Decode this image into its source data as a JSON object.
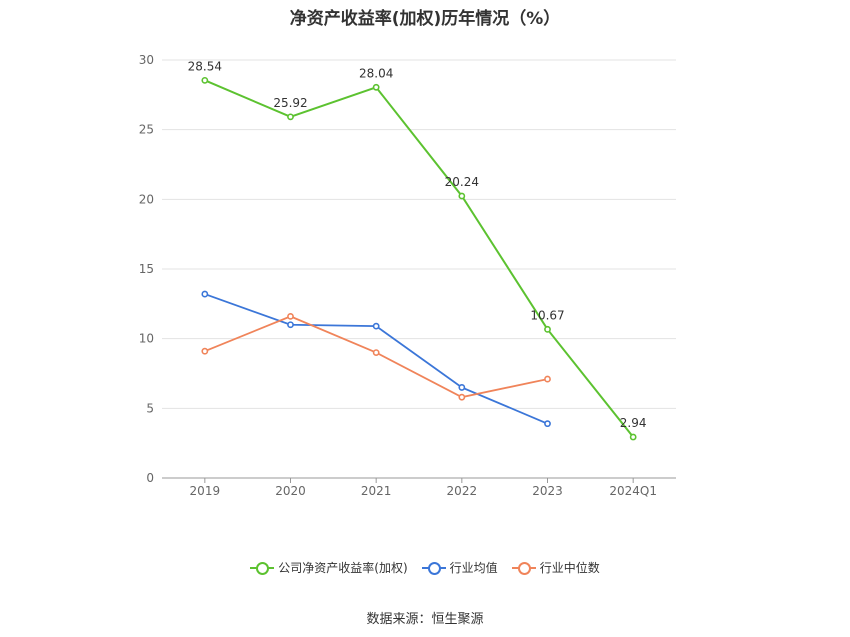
{
  "chart_data": {
    "type": "line",
    "title": "净资产收益率(加权)历年情况（%）",
    "categories": [
      "2019",
      "2020",
      "2021",
      "2022",
      "2023",
      "2024Q1"
    ],
    "ylim": [
      0,
      30
    ],
    "yticks": [
      0,
      5,
      10,
      15,
      20,
      25,
      30
    ],
    "grid": true,
    "legend_position": "bottom",
    "series": [
      {
        "name": "公司净资产收益率(加权)",
        "color": "#5cc230",
        "values": [
          28.54,
          25.92,
          28.04,
          20.24,
          10.67,
          2.94
        ],
        "labels": [
          "28.54",
          "25.92",
          "28.04",
          "20.24",
          "10.67",
          "2.94"
        ]
      },
      {
        "name": "行业均值",
        "color": "#3b76d8",
        "values": [
          13.2,
          11.0,
          10.9,
          6.5,
          3.9,
          null
        ]
      },
      {
        "name": "行业中位数",
        "color": "#f0845a",
        "values": [
          9.1,
          11.6,
          9.0,
          5.8,
          7.1,
          null
        ]
      }
    ]
  },
  "source": "数据来源：恒生聚源"
}
